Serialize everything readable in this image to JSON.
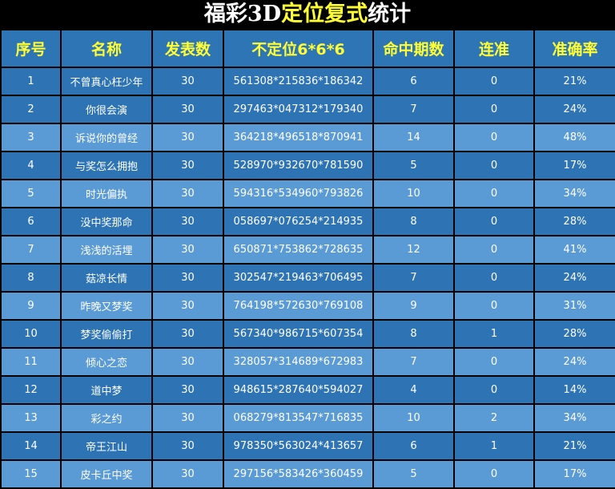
{
  "title": {
    "part1": "福彩3D",
    "part2": "定位复式",
    "part3": "统计"
  },
  "colors": {
    "header_bg": "#2e75b6",
    "row_dark": "#2e74b5",
    "row_light": "#5b9bd5",
    "header_text": "#ffff33"
  },
  "headers": [
    "序号",
    "名称",
    "发表数",
    "不定位6*6*6",
    "命中期数",
    "连准",
    "准确率"
  ],
  "rows": [
    [
      "1",
      "不曾真心枉少年",
      "30",
      "561308*215836*186342",
      "6",
      "0",
      "21%"
    ],
    [
      "2",
      "你很会演",
      "30",
      "297463*047312*179340",
      "7",
      "0",
      "24%"
    ],
    [
      "3",
      "诉说你的曾经",
      "30",
      "364218*496518*870941",
      "14",
      "0",
      "48%"
    ],
    [
      "4",
      "与奖怎么拥抱",
      "30",
      "528970*932670*781590",
      "5",
      "0",
      "17%"
    ],
    [
      "5",
      "时光偏执",
      "30",
      "594316*534960*793826",
      "10",
      "0",
      "34%"
    ],
    [
      "6",
      "没中奖那命",
      "30",
      "058697*076254*214935",
      "8",
      "0",
      "28%"
    ],
    [
      "7",
      "浅浅的活埋",
      "30",
      "650871*753862*728635",
      "12",
      "0",
      "41%"
    ],
    [
      "8",
      "菇凉长情",
      "30",
      "302547*219463*706495",
      "7",
      "0",
      "24%"
    ],
    [
      "9",
      "昨晚又梦奖",
      "30",
      "764198*572630*769108",
      "9",
      "0",
      "31%"
    ],
    [
      "10",
      "梦奖偷偷打",
      "30",
      "567340*986715*607354",
      "8",
      "1",
      "28%"
    ],
    [
      "11",
      "倾心之恋",
      "30",
      "328057*314689*672983",
      "7",
      "0",
      "24%"
    ],
    [
      "12",
      "道中梦",
      "30",
      "948615*287640*594027",
      "4",
      "0",
      "14%"
    ],
    [
      "13",
      "彩之约",
      "30",
      "068279*813547*716835",
      "10",
      "2",
      "34%"
    ],
    [
      "14",
      "帝王江山",
      "30",
      "978350*563024*413657",
      "6",
      "1",
      "21%"
    ],
    [
      "15",
      "皮卡丘中奖",
      "30",
      "297156*583426*360459",
      "5",
      "0",
      "17%"
    ]
  ]
}
